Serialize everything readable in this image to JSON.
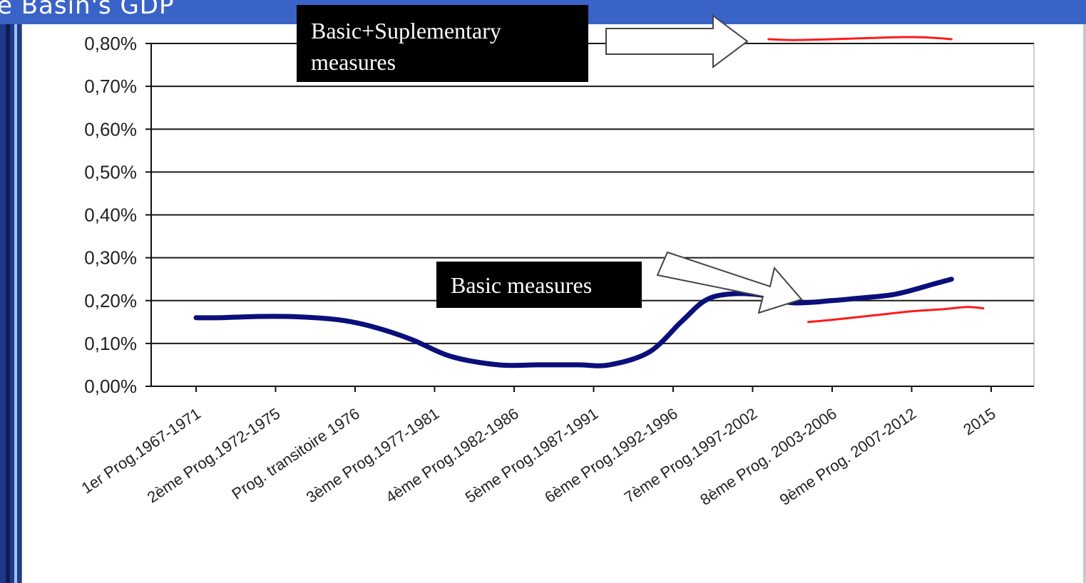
{
  "slide": {
    "title": "e Basin's GDP"
  },
  "annotations": {
    "supplementary_label": "Basic+Suplementary measures",
    "basic_label": "Basic measures"
  },
  "colors": {
    "title_bar": "#3a63c8",
    "series_basic": "#0b0f7a",
    "series_supplementary": "#ff1a1a",
    "grid": "#1a1a1a"
  },
  "chart_data": {
    "type": "line",
    "title": "",
    "xlabel": "",
    "ylabel": "",
    "categories": [
      "1er Prog.1967-1971",
      "2ème Prog.1972-1975",
      "Prog. transitoire 1976",
      "3ème Prog.1977-1981",
      "4ème Prog.1982-1986",
      "5ème Prog.1987-1991",
      "6ème Prog.1992-1996",
      "7ème Prog.1997-2002",
      "8ème Prog. 2003-2006",
      "9ème Prog. 2007-2012",
      "2015"
    ],
    "ylim": [
      0,
      0.8
    ],
    "yticks": [
      "0,00%",
      "0,10%",
      "0,20%",
      "0,30%",
      "0,40%",
      "0,50%",
      "0,60%",
      "0,70%",
      "0,80%"
    ],
    "grid": true,
    "series": [
      {
        "x": [
          0.0,
          0.3,
          0.8,
          1.3,
          1.8,
          2.2,
          2.7,
          3.2,
          3.8,
          4.3,
          4.8,
          5.2,
          5.7,
          6.1,
          6.4,
          6.7,
          7.1,
          7.5,
          8.0,
          8.3,
          8.8,
          9.3,
          9.5
        ],
        "values": [
          0.16,
          0.16,
          0.163,
          0.162,
          0.155,
          0.14,
          0.11,
          0.07,
          0.05,
          0.05,
          0.05,
          0.05,
          0.08,
          0.15,
          0.2,
          0.215,
          0.213,
          0.195,
          0.2,
          0.205,
          0.215,
          0.24,
          0.25
        ]
      },
      {
        "x": [
          7.2,
          7.5,
          8.0,
          8.5,
          9.0,
          9.3,
          9.5
        ],
        "values": [
          0.81,
          0.808,
          0.81,
          0.813,
          0.815,
          0.813,
          0.81
        ]
      },
      {
        "x": [
          7.7,
          8.0,
          8.5,
          9.0,
          9.4,
          9.7,
          9.9
        ],
        "values": [
          0.15,
          0.155,
          0.165,
          0.175,
          0.18,
          0.185,
          0.182
        ]
      }
    ]
  }
}
